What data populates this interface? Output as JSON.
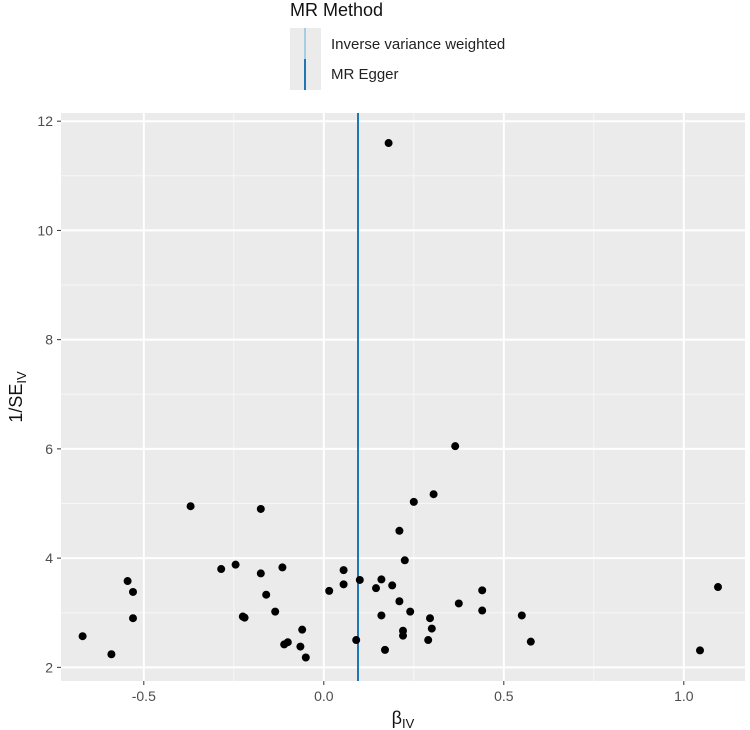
{
  "chart_data": {
    "type": "scatter",
    "title": "",
    "xlabel": "β",
    "xlabel_sub": "IV",
    "ylabel": "1/SE",
    "ylabel_sub": "IV",
    "xlim": [
      -0.73,
      1.17
    ],
    "ylim": [
      1.75,
      12.15
    ],
    "x_ticks": [
      -0.5,
      0.0,
      0.5,
      1.0
    ],
    "x_tick_labels": [
      "-0.5",
      "0.0",
      "0.5",
      "1.0"
    ],
    "y_ticks": [
      2,
      4,
      6,
      8,
      10,
      12
    ],
    "y_tick_labels": [
      "2",
      "4",
      "6",
      "8",
      "10",
      "12"
    ],
    "grid": true,
    "legend": {
      "title": "MR Method",
      "position": "top",
      "entries": [
        {
          "name": "Inverse variance weighted",
          "color": "#a6cee3"
        },
        {
          "name": "MR Egger",
          "color": "#1f78b4"
        }
      ]
    },
    "vlines": [
      {
        "method": "Inverse variance weighted",
        "x": 0.095,
        "color": "#a6cee3"
      },
      {
        "method": "MR Egger",
        "x": 0.095,
        "color": "#1f78b4"
      }
    ],
    "points": [
      {
        "x": 0.18,
        "y": 11.6
      },
      {
        "x": 0.365,
        "y": 6.05
      },
      {
        "x": -0.37,
        "y": 4.95
      },
      {
        "x": -0.175,
        "y": 4.9
      },
      {
        "x": 0.305,
        "y": 5.17
      },
      {
        "x": 0.25,
        "y": 5.03
      },
      {
        "x": 0.21,
        "y": 4.5
      },
      {
        "x": 0.225,
        "y": 3.96
      },
      {
        "x": -0.245,
        "y": 3.88
      },
      {
        "x": -0.285,
        "y": 3.8
      },
      {
        "x": -0.115,
        "y": 3.83
      },
      {
        "x": -0.175,
        "y": 3.72
      },
      {
        "x": 0.055,
        "y": 3.78
      },
      {
        "x": 0.1,
        "y": 3.6
      },
      {
        "x": 0.16,
        "y": 3.61
      },
      {
        "x": 0.055,
        "y": 3.52
      },
      {
        "x": -0.545,
        "y": 3.58
      },
      {
        "x": -0.53,
        "y": 3.38
      },
      {
        "x": 0.145,
        "y": 3.45
      },
      {
        "x": 0.19,
        "y": 3.5
      },
      {
        "x": 0.015,
        "y": 3.4
      },
      {
        "x": 0.44,
        "y": 3.41
      },
      {
        "x": 1.095,
        "y": 3.47
      },
      {
        "x": -0.16,
        "y": 3.33
      },
      {
        "x": 0.21,
        "y": 3.21
      },
      {
        "x": 0.375,
        "y": 3.17
      },
      {
        "x": -0.135,
        "y": 3.02
      },
      {
        "x": 0.44,
        "y": 3.04
      },
      {
        "x": 0.24,
        "y": 3.02
      },
      {
        "x": 0.16,
        "y": 2.95
      },
      {
        "x": -0.22,
        "y": 2.91
      },
      {
        "x": -0.225,
        "y": 2.93
      },
      {
        "x": -0.53,
        "y": 2.9
      },
      {
        "x": 0.295,
        "y": 2.9
      },
      {
        "x": 0.55,
        "y": 2.95
      },
      {
        "x": 0.3,
        "y": 2.71
      },
      {
        "x": -0.06,
        "y": 2.69
      },
      {
        "x": 0.22,
        "y": 2.67
      },
      {
        "x": 0.22,
        "y": 2.58
      },
      {
        "x": -0.67,
        "y": 2.57
      },
      {
        "x": 0.09,
        "y": 2.5
      },
      {
        "x": 0.29,
        "y": 2.5
      },
      {
        "x": -0.1,
        "y": 2.46
      },
      {
        "x": -0.11,
        "y": 2.42
      },
      {
        "x": -0.065,
        "y": 2.38
      },
      {
        "x": 0.575,
        "y": 2.47
      },
      {
        "x": 0.17,
        "y": 2.32
      },
      {
        "x": 1.045,
        "y": 2.31
      },
      {
        "x": -0.59,
        "y": 2.24
      },
      {
        "x": -0.05,
        "y": 2.18
      }
    ]
  }
}
